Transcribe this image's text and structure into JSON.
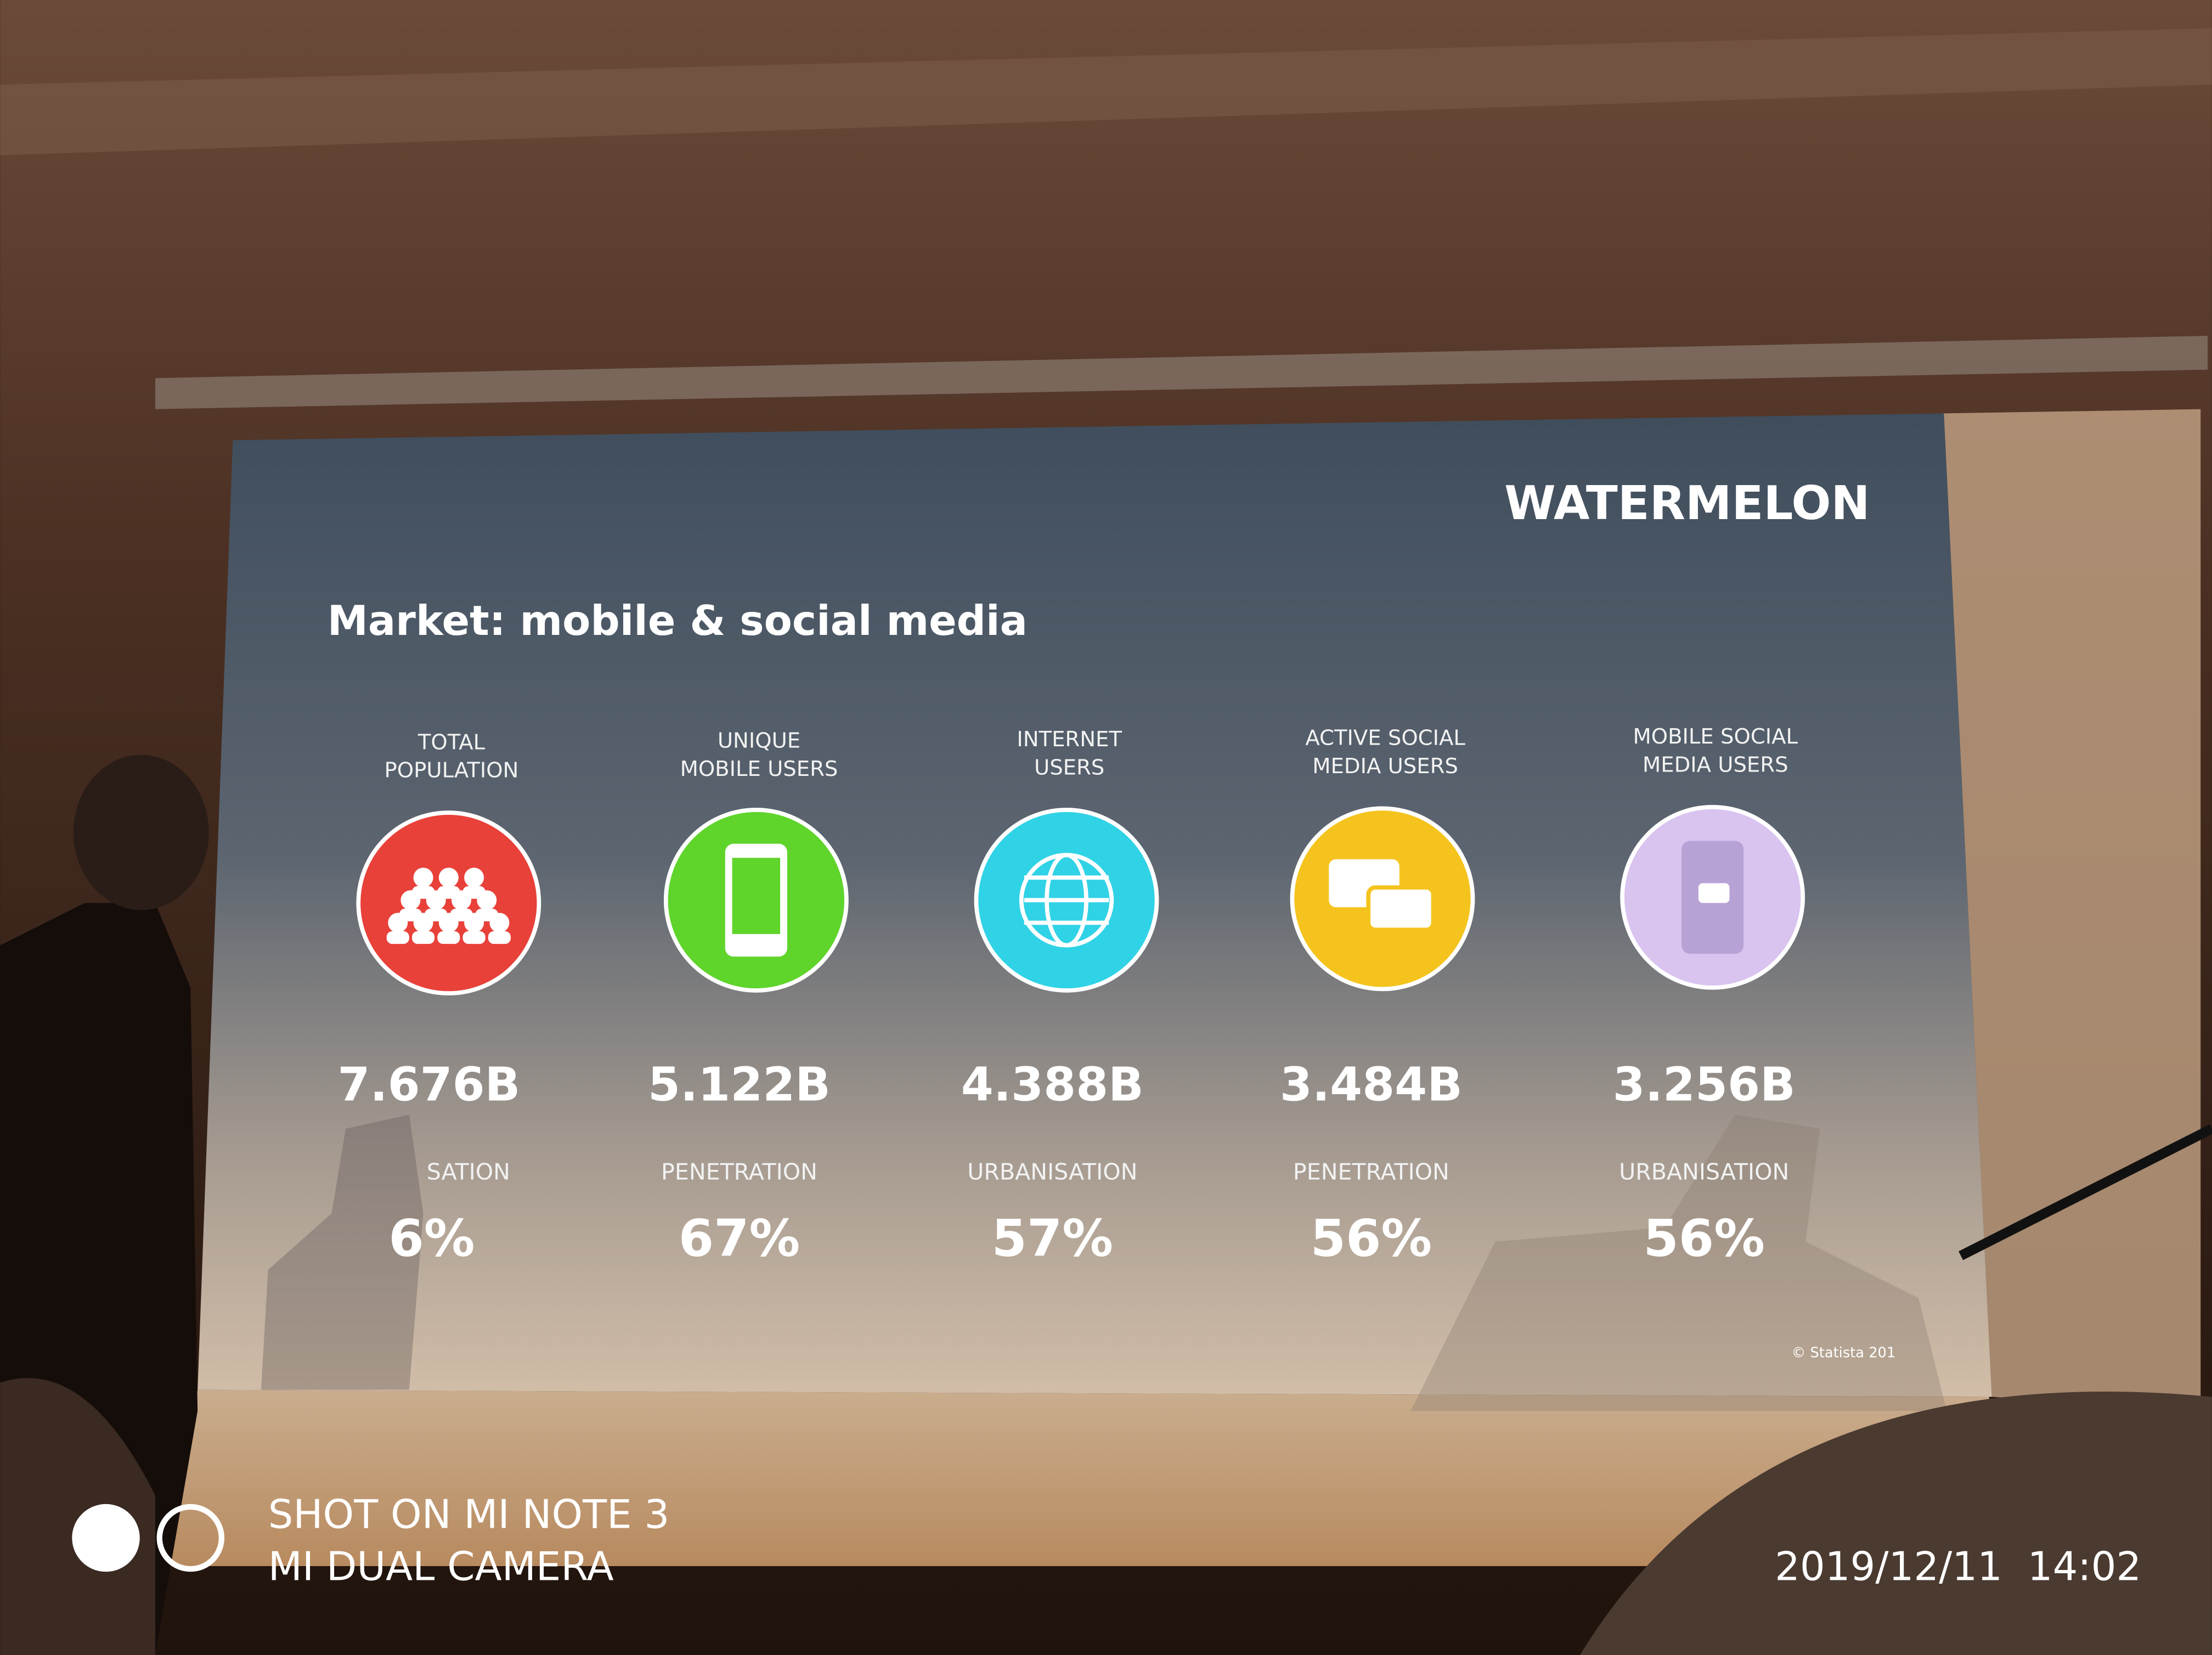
{
  "slide": {
    "logo": "WATERMELON",
    "title": "Market: mobile & social media",
    "stats": [
      {
        "label": [
          "TOTAL",
          "POPULATION"
        ],
        "value": "7.676B",
        "metric": "SATION",
        "percent": "6%"
      },
      {
        "label": [
          "UNIQUE",
          "MOBILE USERS"
        ],
        "value": "5.122B",
        "metric": "PENETRATION",
        "percent": "67%"
      },
      {
        "label": [
          "INTERNET",
          "USERS"
        ],
        "value": "4.388B",
        "metric": "URBANISATION",
        "percent": "57%"
      },
      {
        "label": [
          "ACTIVE SOCIAL",
          "MEDIA USERS"
        ],
        "value": "3.484B",
        "metric": "PENETRATION",
        "percent": "56%"
      },
      {
        "label": [
          "MOBILE SOCIAL",
          "MEDIA USERS"
        ],
        "value": "3.256B",
        "metric": "URBANISATION",
        "percent": "56%"
      }
    ],
    "credit": "© Statista 201"
  },
  "camera_watermark": {
    "line1": "SHOT ON MI NOTE 3",
    "line2": "MI DUAL CAMERA",
    "timestamp": "2019/12/11  14:02"
  }
}
